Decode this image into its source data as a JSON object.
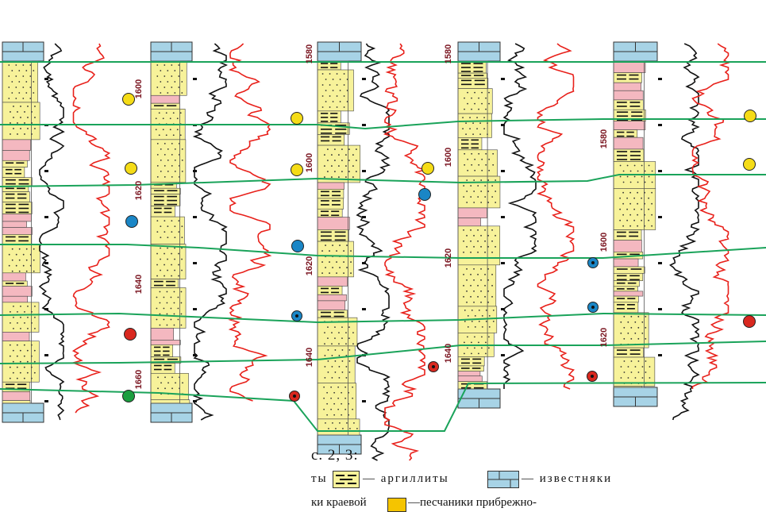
{
  "depth_labels": [
    {
      "text": "1600",
      "col": 0,
      "depth": 1600
    },
    {
      "text": "1620",
      "col": 0,
      "depth": 1620
    },
    {
      "text": "1640",
      "col": 0,
      "depth": 1640
    },
    {
      "text": "1660",
      "col": 0,
      "depth": 1660
    },
    {
      "text": "1580",
      "col": 1,
      "depth": 1580
    },
    {
      "text": "1600",
      "col": 1,
      "depth": 1600
    },
    {
      "text": "1620",
      "col": 1,
      "depth": 1620
    },
    {
      "text": "1640",
      "col": 1,
      "depth": 1640
    },
    {
      "text": "1580",
      "col": 2,
      "depth": 1580
    },
    {
      "text": "1600",
      "col": 2,
      "depth": 1600
    },
    {
      "text": "1620",
      "col": 2,
      "depth": 1620
    },
    {
      "text": "1640",
      "col": 2,
      "depth": 1640
    },
    {
      "text": "1580",
      "col": 3,
      "depth": 1580
    },
    {
      "text": "1600",
      "col": 3,
      "depth": 1600
    },
    {
      "text": "1620",
      "col": 3,
      "depth": 1620
    }
  ],
  "markers": [
    {
      "color": "yellow"
    },
    {
      "color": "yellow"
    },
    {
      "color": "blue"
    },
    {
      "color": "red"
    },
    {
      "color": "green"
    },
    {
      "color": "yellow"
    },
    {
      "color": "yellow"
    },
    {
      "color": "blue"
    },
    {
      "color": "blue-dot"
    },
    {
      "color": "red-dot"
    },
    {
      "color": "yellow"
    },
    {
      "color": "blue"
    },
    {
      "color": "red-dot"
    },
    {
      "color": "blue-dot"
    },
    {
      "color": "blue-dot"
    },
    {
      "color": "red-dot"
    },
    {
      "color": "yellow"
    },
    {
      "color": "yellow"
    },
    {
      "color": "red"
    }
  ],
  "legend": {
    "caption": "с. 2, 3:",
    "row1_partial": "ты",
    "argillites": "— аргиллиты",
    "limestones": "— известняки",
    "row2_partial": "ки краевой",
    "sandstones": "—песчаники прибрежно-"
  },
  "colors": {
    "sand": "#f7f29a",
    "clay_stripe": "#f4b8c0",
    "limestone": "#a7d3e6",
    "correlation": "#1aa35a",
    "log_red": "#e8201a",
    "log_black": "#111111",
    "marker_yellow": "#f5dc17",
    "marker_blue": "#1a86c6",
    "marker_red": "#d9281f",
    "marker_green": "#1a9e3f",
    "depth_text": "#7a1520"
  }
}
